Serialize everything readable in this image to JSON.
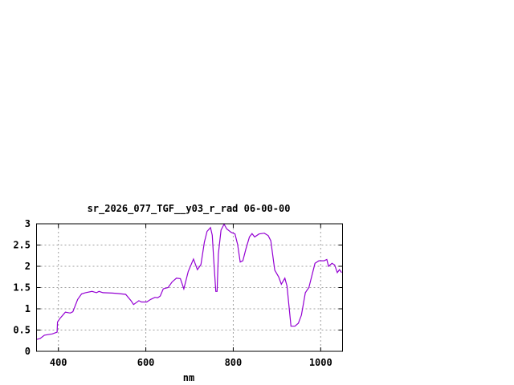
{
  "chart_data": {
    "type": "line",
    "title": "sr_2026_077_TGF__y03_r_rad 06-00-00",
    "xlabel": "nm",
    "ylabel": "",
    "xlim": [
      350,
      1050
    ],
    "ylim": [
      0,
      3
    ],
    "xticks": [
      400,
      600,
      800,
      1000
    ],
    "yticks": [
      0,
      0.5,
      1,
      1.5,
      2,
      2.5,
      3
    ],
    "ytick_labels": [
      "0",
      "0.5",
      "1",
      "1.5",
      "2",
      "2.5",
      "3"
    ],
    "grid": true,
    "line_color": "#9400d3",
    "series": [
      {
        "x": [
          350,
          358,
          368,
          386,
          397,
          398,
          404,
          416,
          427,
          433,
          444,
          453,
          462,
          477,
          487,
          493,
          502,
          523,
          535,
          554,
          566,
          572,
          584,
          590,
          602,
          611,
          621,
          627,
          633,
          640,
          651,
          660,
          670,
          679,
          687,
          697,
          709,
          718,
          726,
          734,
          740,
          748,
          752,
          755,
          760,
          763,
          766,
          772,
          779,
          785,
          795,
          804,
          810,
          816,
          822,
          829,
          837,
          843,
          849,
          859,
          871,
          880,
          886,
          895,
          904,
          910,
          918,
          923,
          932,
          941,
          949,
          956,
          965,
          973,
          987,
          996,
          1008,
          1014,
          1018,
          1026,
          1032,
          1038,
          1043,
          1048
        ],
        "y": [
          0.28,
          0.3,
          0.38,
          0.41,
          0.45,
          0.69,
          0.78,
          0.92,
          0.9,
          0.93,
          1.22,
          1.35,
          1.38,
          1.41,
          1.38,
          1.41,
          1.38,
          1.37,
          1.36,
          1.34,
          1.19,
          1.1,
          1.19,
          1.16,
          1.16,
          1.22,
          1.27,
          1.26,
          1.3,
          1.47,
          1.5,
          1.63,
          1.72,
          1.71,
          1.47,
          1.88,
          2.17,
          1.92,
          2.04,
          2.57,
          2.82,
          2.91,
          2.73,
          2.22,
          1.41,
          1.41,
          2.29,
          2.85,
          2.99,
          2.88,
          2.8,
          2.76,
          2.51,
          2.1,
          2.13,
          2.41,
          2.69,
          2.77,
          2.69,
          2.76,
          2.78,
          2.72,
          2.6,
          1.91,
          1.75,
          1.58,
          1.72,
          1.53,
          0.59,
          0.59,
          0.66,
          0.85,
          1.38,
          1.5,
          2.07,
          2.13,
          2.13,
          2.16,
          2.0,
          2.07,
          2.03,
          1.85,
          1.92,
          1.85
        ]
      }
    ]
  }
}
